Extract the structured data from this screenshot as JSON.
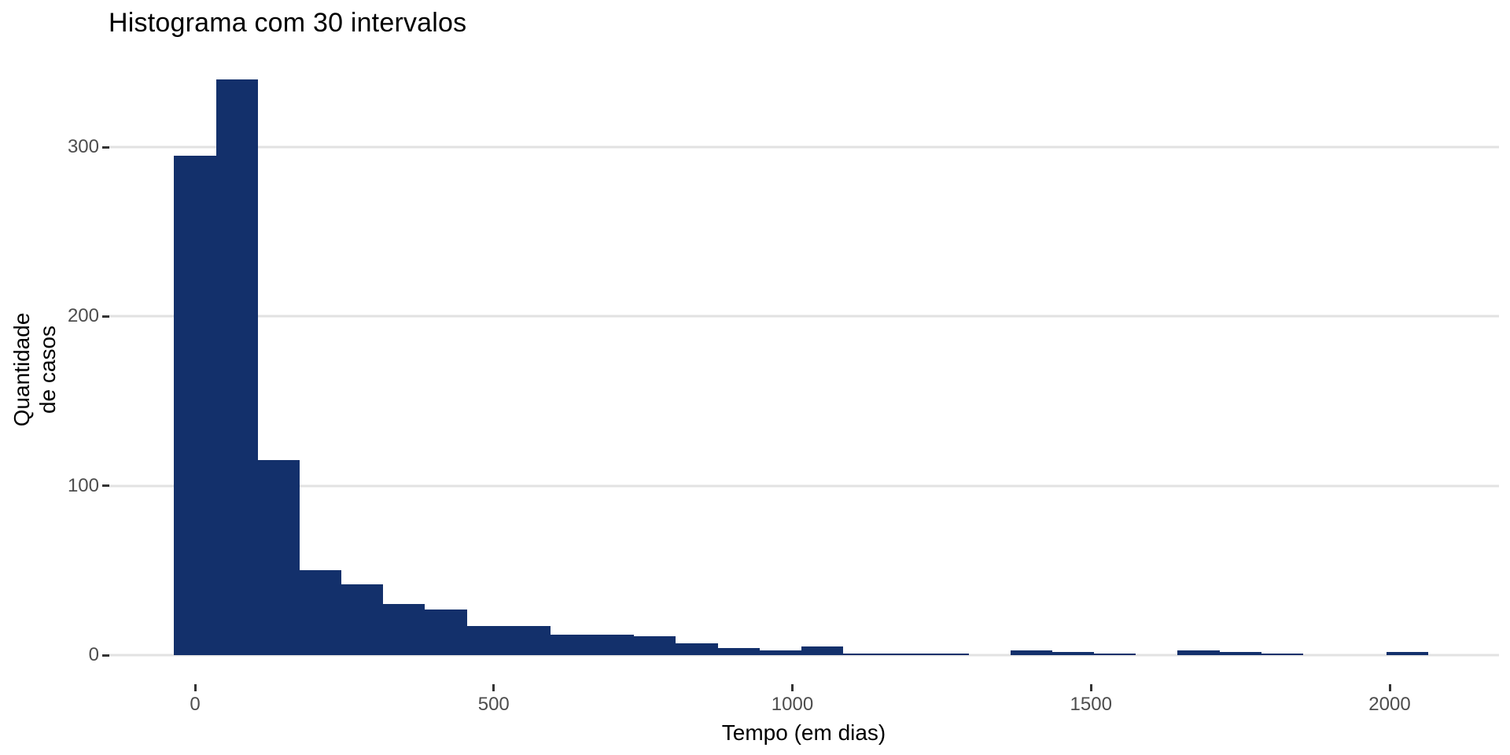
{
  "page": {
    "background": "#FFFFFF"
  },
  "chart_data": {
    "type": "bar",
    "subtype": "histogram",
    "title": "Histograma com 30 intervalos",
    "xlabel": "Tempo (em dias)",
    "ylabel": "Quantidade\nde casos",
    "legend": "none",
    "grid": "horizontal-major-only",
    "bins": 30,
    "bin_width": 70,
    "bin_centers": [
      0,
      70,
      140,
      210,
      280,
      350,
      420,
      490,
      560,
      630,
      700,
      770,
      840,
      910,
      980,
      1050,
      1120,
      1190,
      1260,
      1330,
      1400,
      1470,
      1540,
      1610,
      1680,
      1750,
      1820,
      1890,
      1960,
      2030
    ],
    "counts": [
      295,
      340,
      115,
      50,
      42,
      30,
      27,
      17,
      17,
      12,
      12,
      11,
      7,
      4,
      3,
      5,
      1,
      1,
      1,
      0,
      3,
      2,
      1,
      0,
      3,
      2,
      1,
      0,
      0,
      2
    ],
    "x_ticks": [
      0,
      500,
      1000,
      1500,
      2000
    ],
    "y_ticks": [
      0,
      100,
      200,
      300
    ],
    "x_range_shown": [
      -140,
      2180
    ],
    "y_range_shown": [
      -17,
      357
    ],
    "colors": {
      "bar": "#13306B",
      "grid": "#E2E2E2",
      "tick_mark": "#333333",
      "tick_label": "#4D4D4D",
      "text": "#000000",
      "background": "#FFFFFF"
    }
  }
}
